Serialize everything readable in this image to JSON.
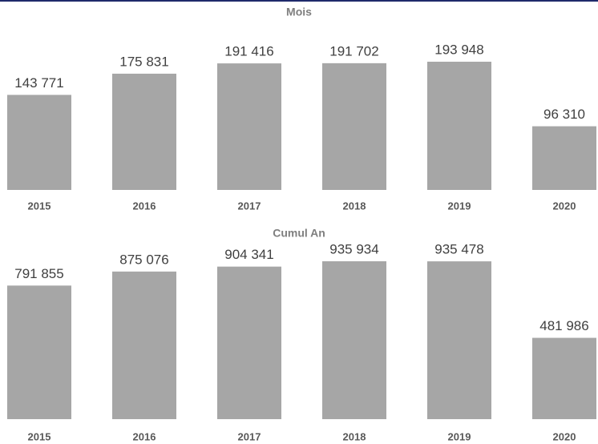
{
  "chart_data": [
    {
      "type": "bar",
      "title": "Mois",
      "categories": [
        "2015",
        "2016",
        "2017",
        "2018",
        "2019",
        "2020"
      ],
      "values": [
        143771,
        175831,
        191416,
        191702,
        193948,
        96310
      ],
      "value_labels": [
        "143 771",
        "175 831",
        "191 416",
        "191 702",
        "193 948",
        "96 310"
      ],
      "color": "#a6a6a6"
    },
    {
      "type": "bar",
      "title": "Cumul An",
      "categories": [
        "2015",
        "2016",
        "2017",
        "2018",
        "2019",
        "2020"
      ],
      "values": [
        791855,
        875076,
        904341,
        935934,
        935478,
        481986
      ],
      "value_labels": [
        "791 855",
        "875 076",
        "904 341",
        "935 934",
        "935 478",
        "481 986"
      ],
      "color": "#a6a6a6"
    }
  ]
}
